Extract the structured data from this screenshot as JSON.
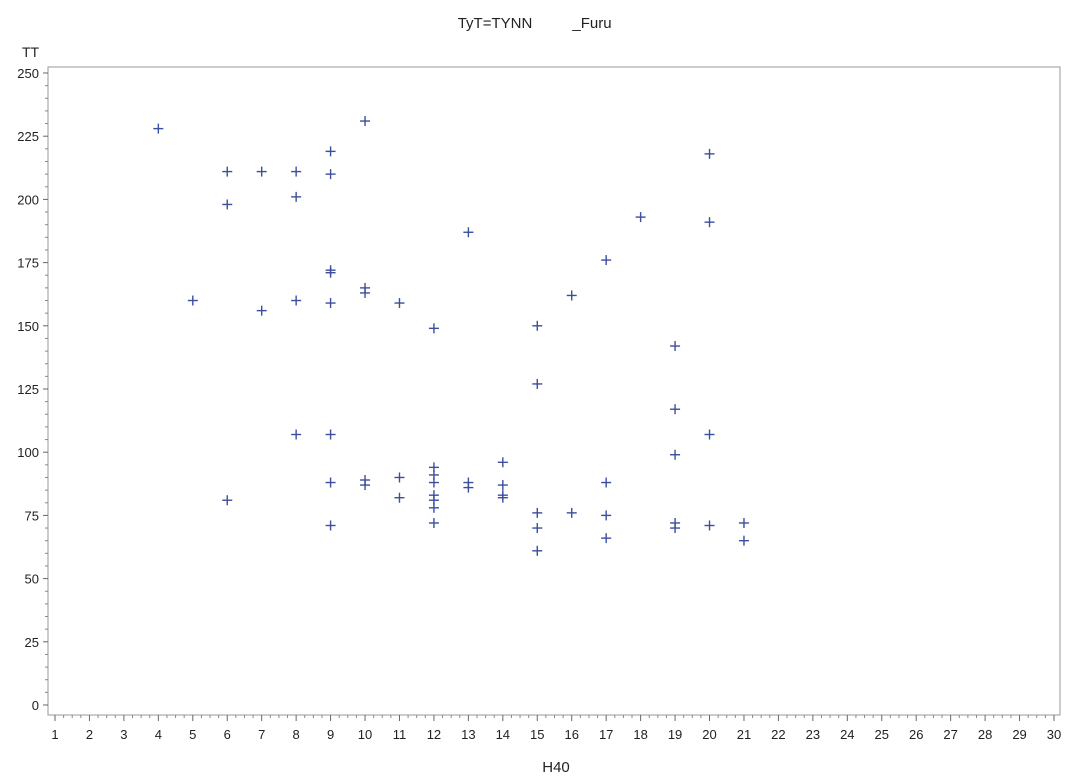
{
  "chart_data": {
    "type": "scatter",
    "title_part1": "TyT=TYNN",
    "title_part2": "_Furu",
    "xlabel": "H40",
    "ylabel": "TT",
    "xlim": [
      1,
      30
    ],
    "ylim": [
      0,
      250
    ],
    "xticks": [
      1,
      2,
      3,
      4,
      5,
      6,
      7,
      8,
      9,
      10,
      11,
      12,
      13,
      14,
      15,
      16,
      17,
      18,
      19,
      20,
      21,
      22,
      23,
      24,
      25,
      26,
      27,
      28,
      29,
      30
    ],
    "yticks": [
      0,
      25,
      50,
      75,
      100,
      125,
      150,
      175,
      200,
      225,
      250
    ],
    "grid": false,
    "marker": "+",
    "marker_color": "#3b4f9e",
    "points": [
      [
        4,
        228
      ],
      [
        5,
        160
      ],
      [
        6,
        211
      ],
      [
        6,
        198
      ],
      [
        6,
        81
      ],
      [
        7,
        211
      ],
      [
        7,
        156
      ],
      [
        8,
        211
      ],
      [
        8,
        201
      ],
      [
        8,
        160
      ],
      [
        8,
        107
      ],
      [
        9,
        219
      ],
      [
        9,
        210
      ],
      [
        9,
        172
      ],
      [
        9,
        171
      ],
      [
        9,
        159
      ],
      [
        9,
        107
      ],
      [
        9,
        88
      ],
      [
        9,
        71
      ],
      [
        10,
        231
      ],
      [
        10,
        165
      ],
      [
        10,
        163
      ],
      [
        10,
        89
      ],
      [
        10,
        87
      ],
      [
        11,
        159
      ],
      [
        11,
        90
      ],
      [
        11,
        82
      ],
      [
        12,
        149
      ],
      [
        12,
        94
      ],
      [
        12,
        91
      ],
      [
        12,
        88
      ],
      [
        12,
        83
      ],
      [
        12,
        81
      ],
      [
        12,
        78
      ],
      [
        12,
        72
      ],
      [
        13,
        187
      ],
      [
        13,
        88
      ],
      [
        13,
        86
      ],
      [
        14,
        96
      ],
      [
        14,
        87
      ],
      [
        14,
        83
      ],
      [
        14,
        82
      ],
      [
        15,
        150
      ],
      [
        15,
        127
      ],
      [
        15,
        76
      ],
      [
        15,
        70
      ],
      [
        15,
        61
      ],
      [
        16,
        162
      ],
      [
        16,
        76
      ],
      [
        17,
        176
      ],
      [
        17,
        88
      ],
      [
        17,
        75
      ],
      [
        17,
        66
      ],
      [
        18,
        193
      ],
      [
        19,
        142
      ],
      [
        19,
        117
      ],
      [
        19,
        99
      ],
      [
        19,
        72
      ],
      [
        19,
        70
      ],
      [
        20,
        218
      ],
      [
        20,
        191
      ],
      [
        20,
        107
      ],
      [
        20,
        71
      ],
      [
        21,
        72
      ],
      [
        21,
        65
      ]
    ]
  }
}
